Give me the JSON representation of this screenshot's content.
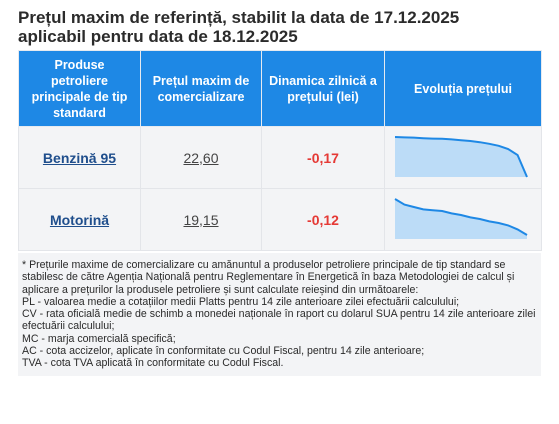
{
  "title_line1": "Prețul maxim de referință, stabilit la data de 17.12.2025",
  "title_line2": "aplicabil pentru data de 18.12.2025",
  "table": {
    "headers": [
      "Produse petroliere principale de tip standard",
      "Prețul maxim de comercializare",
      "Dinamica zilnică a prețului (lei)",
      "Evoluția prețului"
    ],
    "rows": [
      {
        "product": "Benzină 95",
        "price": "22,60",
        "change": "-0,17",
        "trend": [
          1.0,
          0.99,
          0.985,
          0.97,
          0.96,
          0.955,
          0.94,
          0.92,
          0.9,
          0.87,
          0.83,
          0.78,
          0.7,
          0.55,
          0.0
        ],
        "color": "#1e88e5"
      },
      {
        "product": "Motorină",
        "price": "19,15",
        "change": "-0,12",
        "trend": [
          1.0,
          0.86,
          0.8,
          0.74,
          0.72,
          0.7,
          0.64,
          0.6,
          0.54,
          0.5,
          0.44,
          0.4,
          0.34,
          0.24,
          0.1
        ],
        "color": "#1e88e5"
      }
    ]
  },
  "notes": [
    "* Prețurile maxime de comercializare cu amănuntul a produselor petroliere principale de tip standard se stabilesc de către Agenția Națională pentru Reglementare în Energetică în baza Metodologiei de calcul și aplicare a prețurilor la produsele petroliere și sunt calculate reieșind din următoarele:",
    "PL - valoarea medie a cotațiilor medii Platts pentru 14 zile anterioare zilei efectuării calculului;",
    "CV - rata oficială medie de schimb a monedei naționale în raport cu dolarul SUA pentru 14 zile anterioare zilei efectuării calculului;",
    "MC - marja comercială specifică;",
    "AC - cota accizelor, aplicate în conformitate cu Codul Fiscal, pentru 14 zile anterioare;",
    "TVA - cota TVA aplicată în conformitate cu Codul Fiscal."
  ]
}
